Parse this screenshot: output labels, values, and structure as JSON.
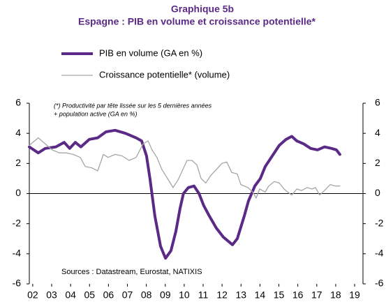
{
  "chart_data": {
    "type": "line",
    "title": "Graphique 5b",
    "subtitle": "Espagne : PIB en volume et croissance potentielle*",
    "annotations": [
      "(*) Productivité par tête lissée sur les 5 dernières années",
      "+ population active (GA en %)",
      "Sources : Datastream, Eurostat, NATIXIS"
    ],
    "xlim": [
      2001.82,
      2019.44
    ],
    "xticks": [
      {
        "value": 2002,
        "label": "02"
      },
      {
        "value": 2003,
        "label": "03"
      },
      {
        "value": 2004,
        "label": "04"
      },
      {
        "value": 2005,
        "label": "05"
      },
      {
        "value": 2006,
        "label": "06"
      },
      {
        "value": 2007,
        "label": "07"
      },
      {
        "value": 2008,
        "label": "08"
      },
      {
        "value": 2009,
        "label": "09"
      },
      {
        "value": 2010,
        "label": "10"
      },
      {
        "value": 2011,
        "label": "11"
      },
      {
        "value": 2012,
        "label": "12"
      },
      {
        "value": 2013,
        "label": "13"
      },
      {
        "value": 2014,
        "label": "14"
      },
      {
        "value": 2015,
        "label": "15"
      },
      {
        "value": 2016,
        "label": "16"
      },
      {
        "value": 2017,
        "label": "17"
      },
      {
        "value": 2018,
        "label": "18"
      },
      {
        "value": 2019,
        "label": "19"
      }
    ],
    "ylim": [
      -6,
      6
    ],
    "yticks": [
      -6,
      -4,
      -2,
      0,
      2,
      4,
      6
    ],
    "y2lim": [
      -6,
      6
    ],
    "y2ticks": [
      -6,
      -4,
      -2,
      0,
      2,
      4,
      6
    ],
    "grid": false,
    "series": [
      {
        "name": "PIB en volume (GA en %)",
        "color": "#5b2a86",
        "x": [
          2001.82,
          2002.29,
          2002.66,
          2003.22,
          2003.66,
          2003.95,
          2004.25,
          2004.54,
          2004.99,
          2005.43,
          2005.87,
          2006.35,
          2006.9,
          2007.46,
          2007.75,
          2008.01,
          2008.19,
          2008.45,
          2008.75,
          2009.01,
          2009.3,
          2009.56,
          2009.78,
          2009.96,
          2010.22,
          2010.52,
          2010.78,
          2011.03,
          2011.33,
          2011.7,
          2012.07,
          2012.55,
          2012.8,
          2013.17,
          2013.39,
          2013.73,
          2014.02,
          2014.28,
          2014.65,
          2015.02,
          2015.38,
          2015.68,
          2015.94,
          2016.31,
          2016.68,
          2017.04,
          2017.41,
          2017.78,
          2018.04,
          2018.22
        ],
        "values": [
          3.1,
          2.7,
          3.0,
          3.1,
          3.4,
          3.0,
          3.4,
          3.1,
          3.6,
          3.7,
          4.1,
          4.2,
          4.0,
          3.7,
          3.5,
          2.5,
          1.0,
          -1.5,
          -3.5,
          -4.3,
          -3.8,
          -2.5,
          -1.0,
          0.0,
          0.4,
          0.5,
          0.0,
          -0.8,
          -1.5,
          -2.3,
          -2.9,
          -3.4,
          -3.0,
          -1.5,
          -0.5,
          0.5,
          1.0,
          1.8,
          2.5,
          3.2,
          3.6,
          3.8,
          3.5,
          3.3,
          3.0,
          2.9,
          3.1,
          3.0,
          2.9,
          2.6
        ]
      },
      {
        "name": "Croissance potentielle* (volume)",
        "color": "#a6a6a6",
        "x": [
          2001.82,
          2002.29,
          2002.66,
          2003.03,
          2003.4,
          2003.77,
          2004.14,
          2004.51,
          2004.77,
          2005.14,
          2005.43,
          2005.73,
          2005.98,
          2006.35,
          2006.72,
          2007.09,
          2007.46,
          2007.83,
          2008.09,
          2008.3,
          2008.56,
          2008.82,
          2009.12,
          2009.41,
          2009.67,
          2009.93,
          2010.15,
          2010.41,
          2010.67,
          2010.89,
          2011.14,
          2011.4,
          2011.7,
          2011.99,
          2012.25,
          2012.51,
          2012.8,
          2012.99,
          2013.36,
          2013.62,
          2013.8,
          2013.98,
          2014.28,
          2014.46,
          2014.76,
          2015.02,
          2015.27,
          2015.46,
          2015.68,
          2015.94,
          2016.2,
          2016.49,
          2016.75,
          2016.93,
          2017.15,
          2017.41,
          2017.71,
          2017.97,
          2018.22
        ],
        "values": [
          3.2,
          3.7,
          3.3,
          2.9,
          2.7,
          2.7,
          2.6,
          2.4,
          1.8,
          1.7,
          1.5,
          2.6,
          2.4,
          2.6,
          2.5,
          2.2,
          2.4,
          3.3,
          3.5,
          2.9,
          2.4,
          1.6,
          1.0,
          0.4,
          0.9,
          1.6,
          2.2,
          2.2,
          1.9,
          1.0,
          0.7,
          1.2,
          1.6,
          2.0,
          2.1,
          1.4,
          1.3,
          0.6,
          0.4,
          0.1,
          -0.3,
          0.3,
          0.1,
          0.5,
          0.8,
          0.7,
          0.3,
          0.1,
          -0.1,
          0.3,
          0.2,
          0.4,
          0.3,
          0.4,
          -0.1,
          0.2,
          0.6,
          0.5,
          0.5
        ]
      }
    ]
  }
}
